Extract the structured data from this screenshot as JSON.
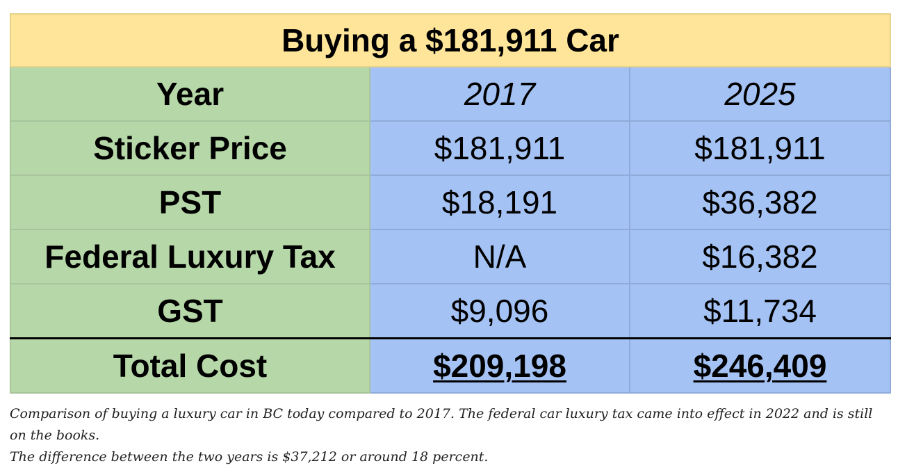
{
  "table": {
    "title": "Buying a $181,911 Car",
    "header": {
      "label": "Year",
      "col1": "2017",
      "col2": "2025"
    },
    "rows": [
      {
        "label": "Sticker Price",
        "v2017": "$181,911",
        "v2025": "$181,911"
      },
      {
        "label": "PST",
        "v2017": "$18,191",
        "v2025": "$36,382"
      },
      {
        "label": "Federal Luxury Tax",
        "v2017": "N/A",
        "v2025": "$16,382"
      },
      {
        "label": "GST",
        "v2017": "$9,096",
        "v2025": "$11,734"
      }
    ],
    "total": {
      "label": "Total Cost",
      "v2017": "$209,198",
      "v2025": "$246,409"
    }
  },
  "colors": {
    "title_bg": "#ffe599",
    "label_bg": "#b6d7a8",
    "value_bg": "#a4c2f4"
  },
  "caption": {
    "line1": "Comparison of buying a luxury car in BC today compared to 2017. The federal car luxury tax came into effect in 2022 and is still on the books.",
    "line2": "The difference between the two years is $37,212 or around 18 percent."
  }
}
